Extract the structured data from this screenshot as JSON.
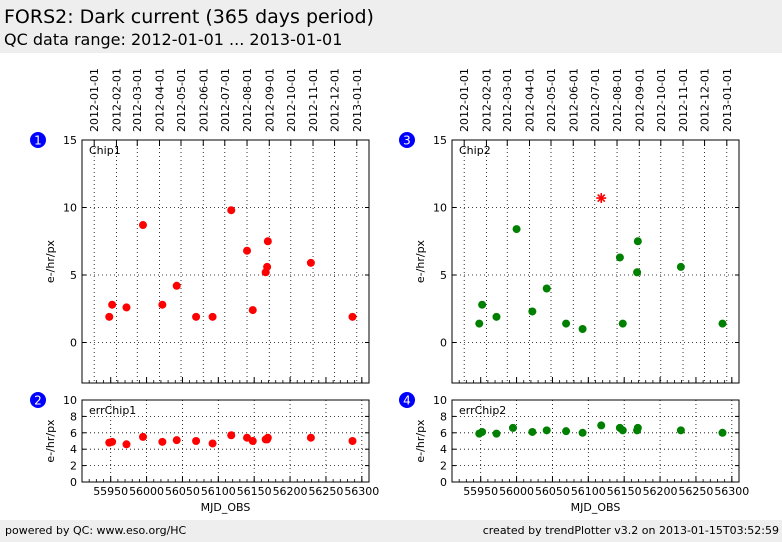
{
  "header": {
    "title": "FORS2: Dark current (365 days period)",
    "subtitle": "QC data range: 2012-01-01 ... 2013-01-01"
  },
  "footer": {
    "left": "powered by QC: www.eso.org/HC",
    "right": "created by trendPlotter v3.2 on 2013-01-15T03:52:59"
  },
  "colors": {
    "chip1": "#ff0000",
    "chip2": "#008000",
    "header_bg": "#eeeeee",
    "badge": "#0000ff"
  },
  "chart_data": [
    {
      "type": "scatter",
      "badge": "1",
      "label": "Chip1",
      "ylabel": "e-/hr/px",
      "xlabel": "",
      "xlim": [
        55910,
        56310
      ],
      "ylim": [
        -3,
        15
      ],
      "yticks": [
        0,
        5,
        10,
        15
      ],
      "xticks": [
        55950,
        56000,
        56050,
        56100,
        56150,
        56200,
        56250,
        56300
      ],
      "date_ticks": [
        "2012-01-01",
        "2012-02-01",
        "2012-03-01",
        "2012-04-01",
        "2012-05-01",
        "2012-06-01",
        "2012-07-01",
        "2012-08-01",
        "2012-09-01",
        "2012-10-01",
        "2012-11-01",
        "2012-12-01",
        "2013-01-01"
      ],
      "date_tick_mjd": [
        55927,
        55958,
        55987,
        56018,
        56048,
        56079,
        56109,
        56140,
        56171,
        56201,
        56232,
        56262,
        56293
      ],
      "color": "#ff0000",
      "x": [
        55948,
        55952,
        55972,
        55995,
        56022,
        56042,
        56069,
        56092,
        56118,
        56140,
        56148,
        56166,
        56168,
        56169,
        56229,
        56287
      ],
      "y": [
        1.9,
        2.8,
        2.6,
        8.7,
        2.8,
        4.2,
        1.9,
        1.9,
        9.8,
        6.8,
        2.4,
        5.2,
        5.6,
        7.5,
        5.9,
        1.9
      ]
    },
    {
      "type": "scatter",
      "badge": "3",
      "label": "Chip2",
      "ylabel": "e-/hr/px",
      "xlabel": "",
      "xlim": [
        55910,
        56310
      ],
      "ylim": [
        -3,
        15
      ],
      "yticks": [
        0,
        5,
        10,
        15
      ],
      "xticks": [
        55950,
        56000,
        56050,
        56100,
        56150,
        56200,
        56250,
        56300
      ],
      "date_ticks": [
        "2012-01-01",
        "2012-02-01",
        "2012-03-01",
        "2012-04-01",
        "2012-05-01",
        "2012-06-01",
        "2012-07-01",
        "2012-08-01",
        "2012-09-01",
        "2012-10-01",
        "2012-11-01",
        "2012-12-01",
        "2013-01-01"
      ],
      "date_tick_mjd": [
        55927,
        55958,
        55987,
        56018,
        56048,
        56079,
        56109,
        56140,
        56171,
        56201,
        56232,
        56262,
        56293
      ],
      "color": "#008000",
      "x": [
        55948,
        55952,
        55972,
        56000,
        56022,
        56042,
        56069,
        56092,
        56144,
        56148,
        56168,
        56169,
        56229,
        56287
      ],
      "y": [
        1.4,
        2.8,
        1.9,
        8.4,
        2.3,
        4.0,
        1.4,
        1.0,
        6.3,
        1.4,
        5.2,
        7.5,
        5.6,
        1.4
      ],
      "outlier": {
        "marker": "star",
        "color": "#ff0000",
        "x": 56118,
        "y": 10.7
      }
    },
    {
      "type": "scatter",
      "badge": "2",
      "label": "errChip1",
      "ylabel": "e-/hr/px",
      "xlabel": "MJD_OBS",
      "xlim": [
        55910,
        56310
      ],
      "ylim": [
        0,
        10
      ],
      "yticks": [
        0,
        2,
        4,
        6,
        8,
        10
      ],
      "xticks": [
        55950,
        56000,
        56050,
        56100,
        56150,
        56200,
        56250,
        56300
      ],
      "color": "#ff0000",
      "x": [
        55948,
        55952,
        55972,
        55995,
        56022,
        56042,
        56069,
        56092,
        56118,
        56140,
        56148,
        56166,
        56168,
        56169,
        56229,
        56287
      ],
      "y": [
        4.8,
        4.9,
        4.6,
        5.5,
        4.9,
        5.1,
        5.0,
        4.7,
        5.7,
        5.4,
        5.0,
        5.2,
        5.2,
        5.4,
        5.4,
        5.0
      ]
    },
    {
      "type": "scatter",
      "badge": "4",
      "label": "errChip2",
      "ylabel": "e-/hr/px",
      "xlabel": "MJD_OBS",
      "xlim": [
        55910,
        56310
      ],
      "ylim": [
        0,
        10
      ],
      "yticks": [
        0,
        2,
        4,
        6,
        8,
        10
      ],
      "xticks": [
        55950,
        56000,
        56050,
        56100,
        56150,
        56200,
        56250,
        56300
      ],
      "color": "#008000",
      "x": [
        55948,
        55952,
        55972,
        55995,
        56022,
        56042,
        56069,
        56092,
        56118,
        56144,
        56148,
        56168,
        56169,
        56229,
        56287
      ],
      "y": [
        5.9,
        6.1,
        5.9,
        6.6,
        6.1,
        6.3,
        6.2,
        6.0,
        6.9,
        6.6,
        6.3,
        6.3,
        6.6,
        6.3,
        6.0
      ]
    }
  ]
}
